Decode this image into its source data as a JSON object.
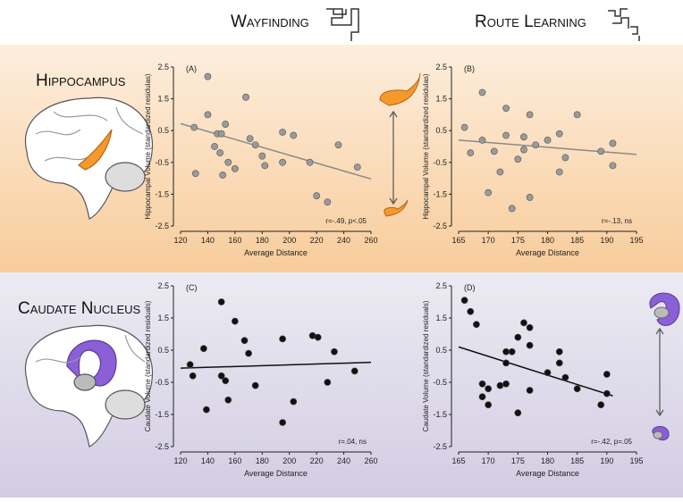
{
  "headers": {
    "columns": [
      "Wayfinding",
      "Route Learning"
    ],
    "rows": [
      "Hippocampus",
      "Caudate Nucleus"
    ]
  },
  "chart_data": [
    {
      "type": "scatter",
      "panel": "(A)",
      "x": [
        130,
        131,
        140,
        140,
        145,
        147,
        149,
        150,
        151,
        153,
        155,
        160,
        168,
        171,
        175,
        180,
        182,
        195,
        195,
        203,
        215,
        220,
        228,
        236,
        250
      ],
      "y": [
        0.6,
        -0.85,
        2.2,
        1.0,
        0.0,
        0.4,
        -0.2,
        0.4,
        -0.9,
        0.7,
        -0.5,
        -0.7,
        1.55,
        0.25,
        0.05,
        -0.3,
        -0.6,
        0.45,
        -0.5,
        0.35,
        -0.5,
        -1.55,
        -1.75,
        0.05,
        -0.65
      ],
      "xlim": [
        120,
        260
      ],
      "ylim": [
        -2.5,
        2.5
      ],
      "xticks": [
        120,
        140,
        160,
        180,
        200,
        220,
        240,
        260
      ],
      "yticks": [
        -2.5,
        -1.5,
        -0.5,
        0.5,
        1.5,
        2.5
      ],
      "xlabel": "Average Distance",
      "ylabel": "Hippocampal Volume (standardized residulas)",
      "annotation": "r=-.49, p<.05",
      "point_color": "#9a9a9a",
      "fit": {
        "x": [
          120,
          260
        ],
        "y": [
          0.72,
          -1.02
        ],
        "color": "#8a8a8a"
      }
    },
    {
      "type": "scatter",
      "panel": "(B)",
      "x": [
        166,
        167,
        169,
        169,
        170,
        171,
        172,
        173,
        173,
        174,
        175,
        176,
        176,
        177,
        177,
        178,
        180,
        182,
        182,
        183,
        185,
        189,
        191,
        191
      ],
      "y": [
        0.6,
        -0.2,
        1.7,
        0.2,
        -1.45,
        -0.15,
        -0.8,
        1.2,
        0.35,
        -1.95,
        -0.4,
        0.3,
        -0.1,
        1.0,
        -1.6,
        0.05,
        0.2,
        -0.8,
        0.4,
        -0.35,
        1.0,
        -0.15,
        0.1,
        -0.6
      ],
      "xlim": [
        165,
        195
      ],
      "ylim": [
        -2.5,
        2.5
      ],
      "xticks": [
        165,
        170,
        175,
        180,
        185,
        190,
        195
      ],
      "yticks": [
        -2.5,
        -1.5,
        -0.5,
        0.5,
        1.5,
        2.5
      ],
      "xlabel": "Average Distance",
      "ylabel": "Hippocampal Volume (standardized residulas)",
      "annotation": "r=-.13, ns",
      "point_color": "#9a9a9a",
      "fit": {
        "x": [
          165,
          195
        ],
        "y": [
          0.2,
          -0.25
        ],
        "color": "#8a8a8a"
      }
    },
    {
      "type": "scatter",
      "panel": "(C)",
      "x": [
        127,
        129,
        137,
        139,
        150,
        150,
        153,
        155,
        160,
        167,
        170,
        175,
        195,
        195,
        203,
        217,
        221,
        228,
        233,
        248
      ],
      "y": [
        0.05,
        -0.3,
        0.55,
        -1.35,
        2.0,
        -0.3,
        -0.45,
        -1.05,
        1.4,
        0.8,
        0.4,
        -0.6,
        0.85,
        -1.75,
        -1.1,
        0.95,
        0.9,
        -0.5,
        0.45,
        -0.15
      ],
      "xlim": [
        120,
        260
      ],
      "ylim": [
        -2.5,
        2.5
      ],
      "xticks": [
        120,
        140,
        160,
        180,
        200,
        220,
        240,
        260
      ],
      "yticks": [
        -2.5,
        -1.5,
        -0.5,
        0.5,
        1.5,
        2.5
      ],
      "xlabel": "Average Distance",
      "ylabel": "Caudate Volume (standardized residuals)",
      "annotation": "r=.04, ns",
      "point_color": "#111111",
      "fit": {
        "x": [
          120,
          260
        ],
        "y": [
          -0.06,
          0.12
        ],
        "color": "#111111"
      }
    },
    {
      "type": "scatter",
      "panel": "(D)",
      "x": [
        166,
        167,
        168,
        169,
        169,
        170,
        170,
        172,
        173,
        173,
        173,
        174,
        175,
        175,
        176,
        177,
        177,
        177,
        180,
        182,
        182,
        183,
        185,
        189,
        190,
        190
      ],
      "y": [
        2.05,
        1.7,
        1.3,
        -0.55,
        -0.95,
        -1.2,
        -0.7,
        -0.6,
        0.45,
        0.1,
        -0.55,
        0.45,
        0.9,
        -1.45,
        1.35,
        1.2,
        0.65,
        -0.75,
        -0.2,
        0.45,
        0.1,
        -0.35,
        -0.7,
        -1.2,
        -0.85,
        -0.25
      ],
      "xlim": [
        165,
        195
      ],
      "ylim": [
        -2.5,
        2.5
      ],
      "xticks": [
        165,
        170,
        175,
        180,
        185,
        190,
        195
      ],
      "yticks": [
        -2.5,
        -1.5,
        -0.5,
        0.5,
        1.5,
        2.5
      ],
      "xlabel": "Average Distance",
      "ylabel": "Caudate Volume (standardized residuals)",
      "annotation": "r=-.42, p=.05",
      "point_color": "#111111",
      "fit": {
        "x": [
          165,
          191
        ],
        "y": [
          0.6,
          -0.92
        ],
        "color": "#111111"
      }
    }
  ]
}
